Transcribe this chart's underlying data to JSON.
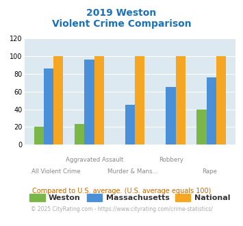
{
  "title_line1": "2019 Weston",
  "title_line2": "Violent Crime Comparison",
  "categories": [
    "All Violent Crime",
    "Aggravated Assault",
    "Murder & Mans...",
    "Robbery",
    "Rape"
  ],
  "weston": [
    20,
    23,
    0,
    0,
    40
  ],
  "massachusetts": [
    86,
    96,
    45,
    65,
    76
  ],
  "national": [
    100,
    100,
    100,
    100,
    100
  ],
  "color_weston": "#7ab648",
  "color_massachusetts": "#4a90d9",
  "color_national": "#f5a623",
  "ylim": [
    0,
    120
  ],
  "yticks": [
    0,
    20,
    40,
    60,
    80,
    100,
    120
  ],
  "bg_color": "#dce9f0",
  "footnote1": "Compared to U.S. average. (U.S. average equals 100)",
  "footnote2": "© 2025 CityRating.com - https://www.cityrating.com/crime-statistics/",
  "title_color": "#1a72bb",
  "footnote1_color": "#cc6600",
  "footnote2_color": "#aaaaaa",
  "footnote2_link_color": "#4a90d9"
}
